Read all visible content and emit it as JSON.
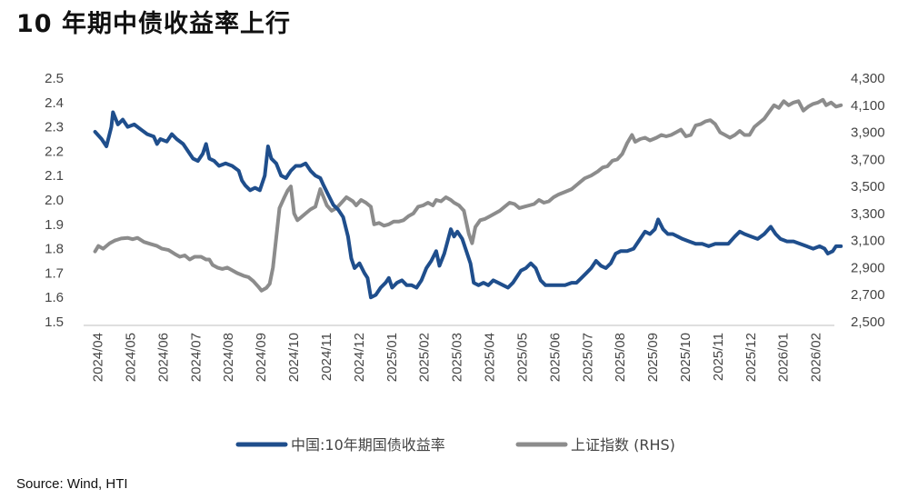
{
  "title": "10 年期中债收益率上行",
  "source": "Source: Wind, HTI",
  "chart_data": {
    "type": "line",
    "x_ticks": [
      "2024/04",
      "2024/05",
      "2024/06",
      "2024/07",
      "2024/08",
      "2024/09",
      "2024/10",
      "2024/11",
      "2024/12",
      "2025/01",
      "2025/02",
      "2025/03",
      "2025/04",
      "2025/05",
      "2025/06",
      "2025/07",
      "2025/08",
      "2025/09",
      "2025/10",
      "2025/11",
      "2025/12",
      "2026/01",
      "2026/02"
    ],
    "y_left": {
      "min": 1.5,
      "max": 2.5,
      "ticks": [
        "1.5",
        "1.6",
        "1.7",
        "1.8",
        "1.9",
        "2.0",
        "2.1",
        "2.2",
        "2.3",
        "2.4",
        "2.5"
      ]
    },
    "y_right": {
      "min": 2500,
      "max": 4300,
      "ticks": [
        "2,500",
        "2,700",
        "2,900",
        "3,100",
        "3,300",
        "3,500",
        "3,700",
        "3,900",
        "4,100",
        "4,300"
      ]
    },
    "grid": false,
    "legend_position": "bottom",
    "series": [
      {
        "name": "中国:10年期国债收益率",
        "axis": "left",
        "color": "#1f4e8c",
        "points": [
          [
            0.0,
            2.28
          ],
          [
            0.2,
            2.25
          ],
          [
            0.35,
            2.22
          ],
          [
            0.5,
            2.3
          ],
          [
            0.55,
            2.36
          ],
          [
            0.7,
            2.31
          ],
          [
            0.85,
            2.33
          ],
          [
            1.0,
            2.3
          ],
          [
            1.2,
            2.31
          ],
          [
            1.4,
            2.29
          ],
          [
            1.6,
            2.27
          ],
          [
            1.8,
            2.26
          ],
          [
            1.9,
            2.23
          ],
          [
            2.0,
            2.25
          ],
          [
            2.2,
            2.24
          ],
          [
            2.35,
            2.27
          ],
          [
            2.5,
            2.25
          ],
          [
            2.7,
            2.23
          ],
          [
            2.85,
            2.2
          ],
          [
            3.0,
            2.17
          ],
          [
            3.15,
            2.16
          ],
          [
            3.3,
            2.19
          ],
          [
            3.4,
            2.23
          ],
          [
            3.5,
            2.17
          ],
          [
            3.65,
            2.16
          ],
          [
            3.8,
            2.14
          ],
          [
            4.0,
            2.15
          ],
          [
            4.2,
            2.14
          ],
          [
            4.4,
            2.12
          ],
          [
            4.5,
            2.08
          ],
          [
            4.6,
            2.06
          ],
          [
            4.75,
            2.04
          ],
          [
            4.9,
            2.05
          ],
          [
            5.05,
            2.04
          ],
          [
            5.2,
            2.1
          ],
          [
            5.3,
            2.22
          ],
          [
            5.4,
            2.17
          ],
          [
            5.55,
            2.15
          ],
          [
            5.7,
            2.1
          ],
          [
            5.85,
            2.09
          ],
          [
            6.0,
            2.12
          ],
          [
            6.15,
            2.14
          ],
          [
            6.3,
            2.14
          ],
          [
            6.45,
            2.15
          ],
          [
            6.6,
            2.12
          ],
          [
            6.75,
            2.1
          ],
          [
            6.9,
            2.09
          ],
          [
            7.0,
            2.06
          ],
          [
            7.15,
            2.02
          ],
          [
            7.3,
            1.98
          ],
          [
            7.45,
            1.96
          ],
          [
            7.6,
            1.93
          ],
          [
            7.75,
            1.85
          ],
          [
            7.85,
            1.76
          ],
          [
            7.95,
            1.72
          ],
          [
            8.1,
            1.74
          ],
          [
            8.25,
            1.7
          ],
          [
            8.35,
            1.68
          ],
          [
            8.45,
            1.6
          ],
          [
            8.6,
            1.61
          ],
          [
            8.75,
            1.64
          ],
          [
            8.9,
            1.66
          ],
          [
            9.0,
            1.68
          ],
          [
            9.1,
            1.64
          ],
          [
            9.25,
            1.66
          ],
          [
            9.4,
            1.67
          ],
          [
            9.55,
            1.65
          ],
          [
            9.7,
            1.65
          ],
          [
            9.85,
            1.64
          ],
          [
            10.0,
            1.67
          ],
          [
            10.15,
            1.72
          ],
          [
            10.3,
            1.75
          ],
          [
            10.45,
            1.79
          ],
          [
            10.55,
            1.73
          ],
          [
            10.7,
            1.78
          ],
          [
            10.8,
            1.83
          ],
          [
            10.9,
            1.88
          ],
          [
            11.0,
            1.85
          ],
          [
            11.1,
            1.87
          ],
          [
            11.25,
            1.84
          ],
          [
            11.35,
            1.8
          ],
          [
            11.5,
            1.74
          ],
          [
            11.6,
            1.66
          ],
          [
            11.75,
            1.65
          ],
          [
            11.9,
            1.66
          ],
          [
            12.05,
            1.65
          ],
          [
            12.2,
            1.67
          ],
          [
            12.35,
            1.66
          ],
          [
            12.5,
            1.65
          ],
          [
            12.65,
            1.64
          ],
          [
            12.8,
            1.66
          ],
          [
            12.95,
            1.69
          ],
          [
            13.05,
            1.71
          ],
          [
            13.2,
            1.72
          ],
          [
            13.35,
            1.74
          ],
          [
            13.5,
            1.72
          ],
          [
            13.65,
            1.67
          ],
          [
            13.8,
            1.65
          ],
          [
            14.0,
            1.65
          ],
          [
            14.2,
            1.65
          ],
          [
            14.4,
            1.65
          ],
          [
            14.6,
            1.66
          ],
          [
            14.75,
            1.66
          ],
          [
            14.9,
            1.68
          ],
          [
            15.05,
            1.7
          ],
          [
            15.2,
            1.72
          ],
          [
            15.35,
            1.75
          ],
          [
            15.5,
            1.73
          ],
          [
            15.65,
            1.72
          ],
          [
            15.8,
            1.74
          ],
          [
            15.95,
            1.78
          ],
          [
            16.1,
            1.79
          ],
          [
            16.3,
            1.79
          ],
          [
            16.5,
            1.8
          ],
          [
            16.7,
            1.84
          ],
          [
            16.85,
            1.87
          ],
          [
            17.0,
            1.86
          ],
          [
            17.15,
            1.88
          ],
          [
            17.25,
            1.92
          ],
          [
            17.4,
            1.88
          ],
          [
            17.55,
            1.86
          ],
          [
            17.7,
            1.86
          ],
          [
            17.85,
            1.85
          ],
          [
            18.0,
            1.84
          ],
          [
            18.2,
            1.83
          ],
          [
            18.4,
            1.82
          ],
          [
            18.6,
            1.82
          ],
          [
            18.8,
            1.81
          ],
          [
            19.0,
            1.82
          ],
          [
            19.2,
            1.82
          ],
          [
            19.4,
            1.82
          ],
          [
            19.6,
            1.85
          ],
          [
            19.75,
            1.87
          ],
          [
            19.9,
            1.86
          ],
          [
            20.1,
            1.85
          ],
          [
            20.3,
            1.84
          ],
          [
            20.5,
            1.86
          ],
          [
            20.7,
            1.89
          ],
          [
            20.85,
            1.86
          ],
          [
            21.0,
            1.84
          ],
          [
            21.2,
            1.83
          ],
          [
            21.4,
            1.83
          ],
          [
            21.6,
            1.82
          ],
          [
            21.8,
            1.81
          ],
          [
            22.0,
            1.8
          ],
          [
            22.2,
            1.81
          ],
          [
            22.35,
            1.8
          ],
          [
            22.45,
            1.78
          ],
          [
            22.6,
            1.79
          ],
          [
            22.7,
            1.81
          ],
          [
            22.85,
            1.81
          ]
        ]
      },
      {
        "name": "上证指数 (RHS)",
        "axis": "right",
        "color": "#8c8c8c",
        "points": [
          [
            0.0,
            3020
          ],
          [
            0.1,
            3060
          ],
          [
            0.25,
            3040
          ],
          [
            0.45,
            3080
          ],
          [
            0.6,
            3100
          ],
          [
            0.8,
            3115
          ],
          [
            1.0,
            3120
          ],
          [
            1.15,
            3110
          ],
          [
            1.3,
            3120
          ],
          [
            1.5,
            3090
          ],
          [
            1.7,
            3075
          ],
          [
            1.9,
            3060
          ],
          [
            2.05,
            3040
          ],
          [
            2.25,
            3030
          ],
          [
            2.45,
            3000
          ],
          [
            2.6,
            2980
          ],
          [
            2.75,
            2990
          ],
          [
            2.9,
            2960
          ],
          [
            3.05,
            2980
          ],
          [
            3.25,
            2980
          ],
          [
            3.4,
            2960
          ],
          [
            3.5,
            2960
          ],
          [
            3.6,
            2920
          ],
          [
            3.75,
            2900
          ],
          [
            3.9,
            2890
          ],
          [
            4.05,
            2900
          ],
          [
            4.2,
            2880
          ],
          [
            4.35,
            2860
          ],
          [
            4.55,
            2840
          ],
          [
            4.7,
            2830
          ],
          [
            4.85,
            2800
          ],
          [
            5.0,
            2760
          ],
          [
            5.1,
            2730
          ],
          [
            5.25,
            2750
          ],
          [
            5.35,
            2780
          ],
          [
            5.45,
            2900
          ],
          [
            5.55,
            3120
          ],
          [
            5.65,
            3340
          ],
          [
            5.8,
            3420
          ],
          [
            5.9,
            3470
          ],
          [
            6.0,
            3500
          ],
          [
            6.1,
            3300
          ],
          [
            6.2,
            3250
          ],
          [
            6.3,
            3270
          ],
          [
            6.45,
            3300
          ],
          [
            6.6,
            3330
          ],
          [
            6.75,
            3350
          ],
          [
            6.9,
            3480
          ],
          [
            7.0,
            3420
          ],
          [
            7.1,
            3360
          ],
          [
            7.25,
            3320
          ],
          [
            7.4,
            3340
          ],
          [
            7.55,
            3380
          ],
          [
            7.7,
            3420
          ],
          [
            7.9,
            3390
          ],
          [
            8.0,
            3360
          ],
          [
            8.15,
            3400
          ],
          [
            8.3,
            3380
          ],
          [
            8.45,
            3350
          ],
          [
            8.55,
            3220
          ],
          [
            8.7,
            3230
          ],
          [
            8.85,
            3210
          ],
          [
            9.0,
            3220
          ],
          [
            9.15,
            3240
          ],
          [
            9.3,
            3240
          ],
          [
            9.45,
            3250
          ],
          [
            9.6,
            3280
          ],
          [
            9.75,
            3300
          ],
          [
            9.9,
            3350
          ],
          [
            10.05,
            3360
          ],
          [
            10.2,
            3380
          ],
          [
            10.35,
            3360
          ],
          [
            10.45,
            3400
          ],
          [
            10.6,
            3390
          ],
          [
            10.75,
            3420
          ],
          [
            10.9,
            3400
          ],
          [
            11.0,
            3380
          ],
          [
            11.15,
            3360
          ],
          [
            11.3,
            3320
          ],
          [
            11.45,
            3150
          ],
          [
            11.55,
            3080
          ],
          [
            11.65,
            3200
          ],
          [
            11.8,
            3250
          ],
          [
            11.95,
            3260
          ],
          [
            12.1,
            3280
          ],
          [
            12.25,
            3300
          ],
          [
            12.4,
            3320
          ],
          [
            12.55,
            3350
          ],
          [
            12.7,
            3380
          ],
          [
            12.85,
            3370
          ],
          [
            13.0,
            3340
          ],
          [
            13.15,
            3350
          ],
          [
            13.3,
            3360
          ],
          [
            13.45,
            3370
          ],
          [
            13.6,
            3400
          ],
          [
            13.75,
            3380
          ],
          [
            13.9,
            3390
          ],
          [
            14.05,
            3420
          ],
          [
            14.2,
            3440
          ],
          [
            14.4,
            3460
          ],
          [
            14.6,
            3480
          ],
          [
            14.8,
            3520
          ],
          [
            15.0,
            3560
          ],
          [
            15.2,
            3580
          ],
          [
            15.4,
            3610
          ],
          [
            15.55,
            3640
          ],
          [
            15.7,
            3650
          ],
          [
            15.85,
            3690
          ],
          [
            16.0,
            3700
          ],
          [
            16.15,
            3740
          ],
          [
            16.3,
            3820
          ],
          [
            16.45,
            3880
          ],
          [
            16.55,
            3830
          ],
          [
            16.7,
            3850
          ],
          [
            16.85,
            3860
          ],
          [
            17.0,
            3840
          ],
          [
            17.2,
            3860
          ],
          [
            17.35,
            3880
          ],
          [
            17.5,
            3870
          ],
          [
            17.65,
            3880
          ],
          [
            17.8,
            3900
          ],
          [
            17.95,
            3920
          ],
          [
            18.1,
            3870
          ],
          [
            18.25,
            3880
          ],
          [
            18.4,
            3950
          ],
          [
            18.55,
            3960
          ],
          [
            18.7,
            3980
          ],
          [
            18.85,
            3990
          ],
          [
            19.0,
            3960
          ],
          [
            19.15,
            3900
          ],
          [
            19.3,
            3880
          ],
          [
            19.45,
            3860
          ],
          [
            19.6,
            3880
          ],
          [
            19.75,
            3910
          ],
          [
            19.9,
            3880
          ],
          [
            20.05,
            3880
          ],
          [
            20.2,
            3940
          ],
          [
            20.35,
            3970
          ],
          [
            20.5,
            4000
          ],
          [
            20.65,
            4050
          ],
          [
            20.8,
            4100
          ],
          [
            20.95,
            4080
          ],
          [
            21.1,
            4130
          ],
          [
            21.25,
            4100
          ],
          [
            21.4,
            4120
          ],
          [
            21.55,
            4130
          ],
          [
            21.7,
            4060
          ],
          [
            21.85,
            4090
          ],
          [
            22.0,
            4110
          ],
          [
            22.15,
            4120
          ],
          [
            22.3,
            4140
          ],
          [
            22.4,
            4100
          ],
          [
            22.55,
            4120
          ],
          [
            22.7,
            4090
          ],
          [
            22.85,
            4100
          ]
        ]
      }
    ]
  }
}
